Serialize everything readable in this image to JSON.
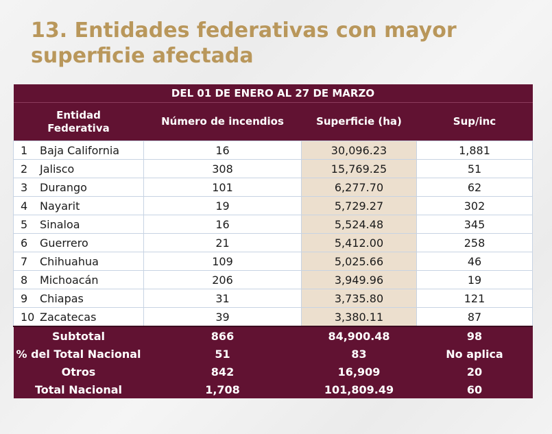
{
  "title": "13. Entidades federativas con mayor superficie afectada",
  "period": "DEL 01 DE ENERO AL 27 DE MARZO",
  "columns": {
    "entidad_line1": "Entidad",
    "entidad_line2": "Federativa",
    "incendios": "Número de incendios",
    "superficie": "Superficie (ha)",
    "supinc": "Sup/inc"
  },
  "rows": [
    {
      "rank": "1",
      "name": "Baja California",
      "incendios": "16",
      "superficie": "30,096.23",
      "supinc": "1,881"
    },
    {
      "rank": "2",
      "name": "Jalisco",
      "incendios": "308",
      "superficie": "15,769.25",
      "supinc": "51"
    },
    {
      "rank": "3",
      "name": "Durango",
      "incendios": "101",
      "superficie": "6,277.70",
      "supinc": "62"
    },
    {
      "rank": "4",
      "name": "Nayarit",
      "incendios": "19",
      "superficie": "5,729.27",
      "supinc": "302"
    },
    {
      "rank": "5",
      "name": "Sinaloa",
      "incendios": "16",
      "superficie": "5,524.48",
      "supinc": "345"
    },
    {
      "rank": "6",
      "name": "Guerrero",
      "incendios": "21",
      "superficie": "5,412.00",
      "supinc": "258"
    },
    {
      "rank": "7",
      "name": "Chihuahua",
      "incendios": "109",
      "superficie": "5,025.66",
      "supinc": "46"
    },
    {
      "rank": "8",
      "name": "Michoacán",
      "incendios": "206",
      "superficie": "3,949.96",
      "supinc": "19"
    },
    {
      "rank": "9",
      "name": "Chiapas",
      "incendios": "31",
      "superficie": "3,735.80",
      "supinc": "121"
    },
    {
      "rank": "10",
      "name": "Zacatecas",
      "incendios": "39",
      "superficie": "3,380.11",
      "supinc": "87"
    }
  ],
  "totals": [
    {
      "label": "Subtotal",
      "incendios": "866",
      "superficie": "84,900.48",
      "supinc": "98"
    },
    {
      "label": "% del Total Nacional",
      "incendios": "51",
      "superficie": "83",
      "supinc": "No aplica"
    },
    {
      "label": "Otros",
      "incendios": "842",
      "superficie": "16,909",
      "supinc": "20"
    },
    {
      "label": "Total Nacional",
      "incendios": "1,708",
      "superficie": "101,809.49",
      "supinc": "60"
    }
  ],
  "colors": {
    "title": "#b9975b",
    "header_bg": "#611232",
    "highlight_column": "#ecdfce"
  }
}
